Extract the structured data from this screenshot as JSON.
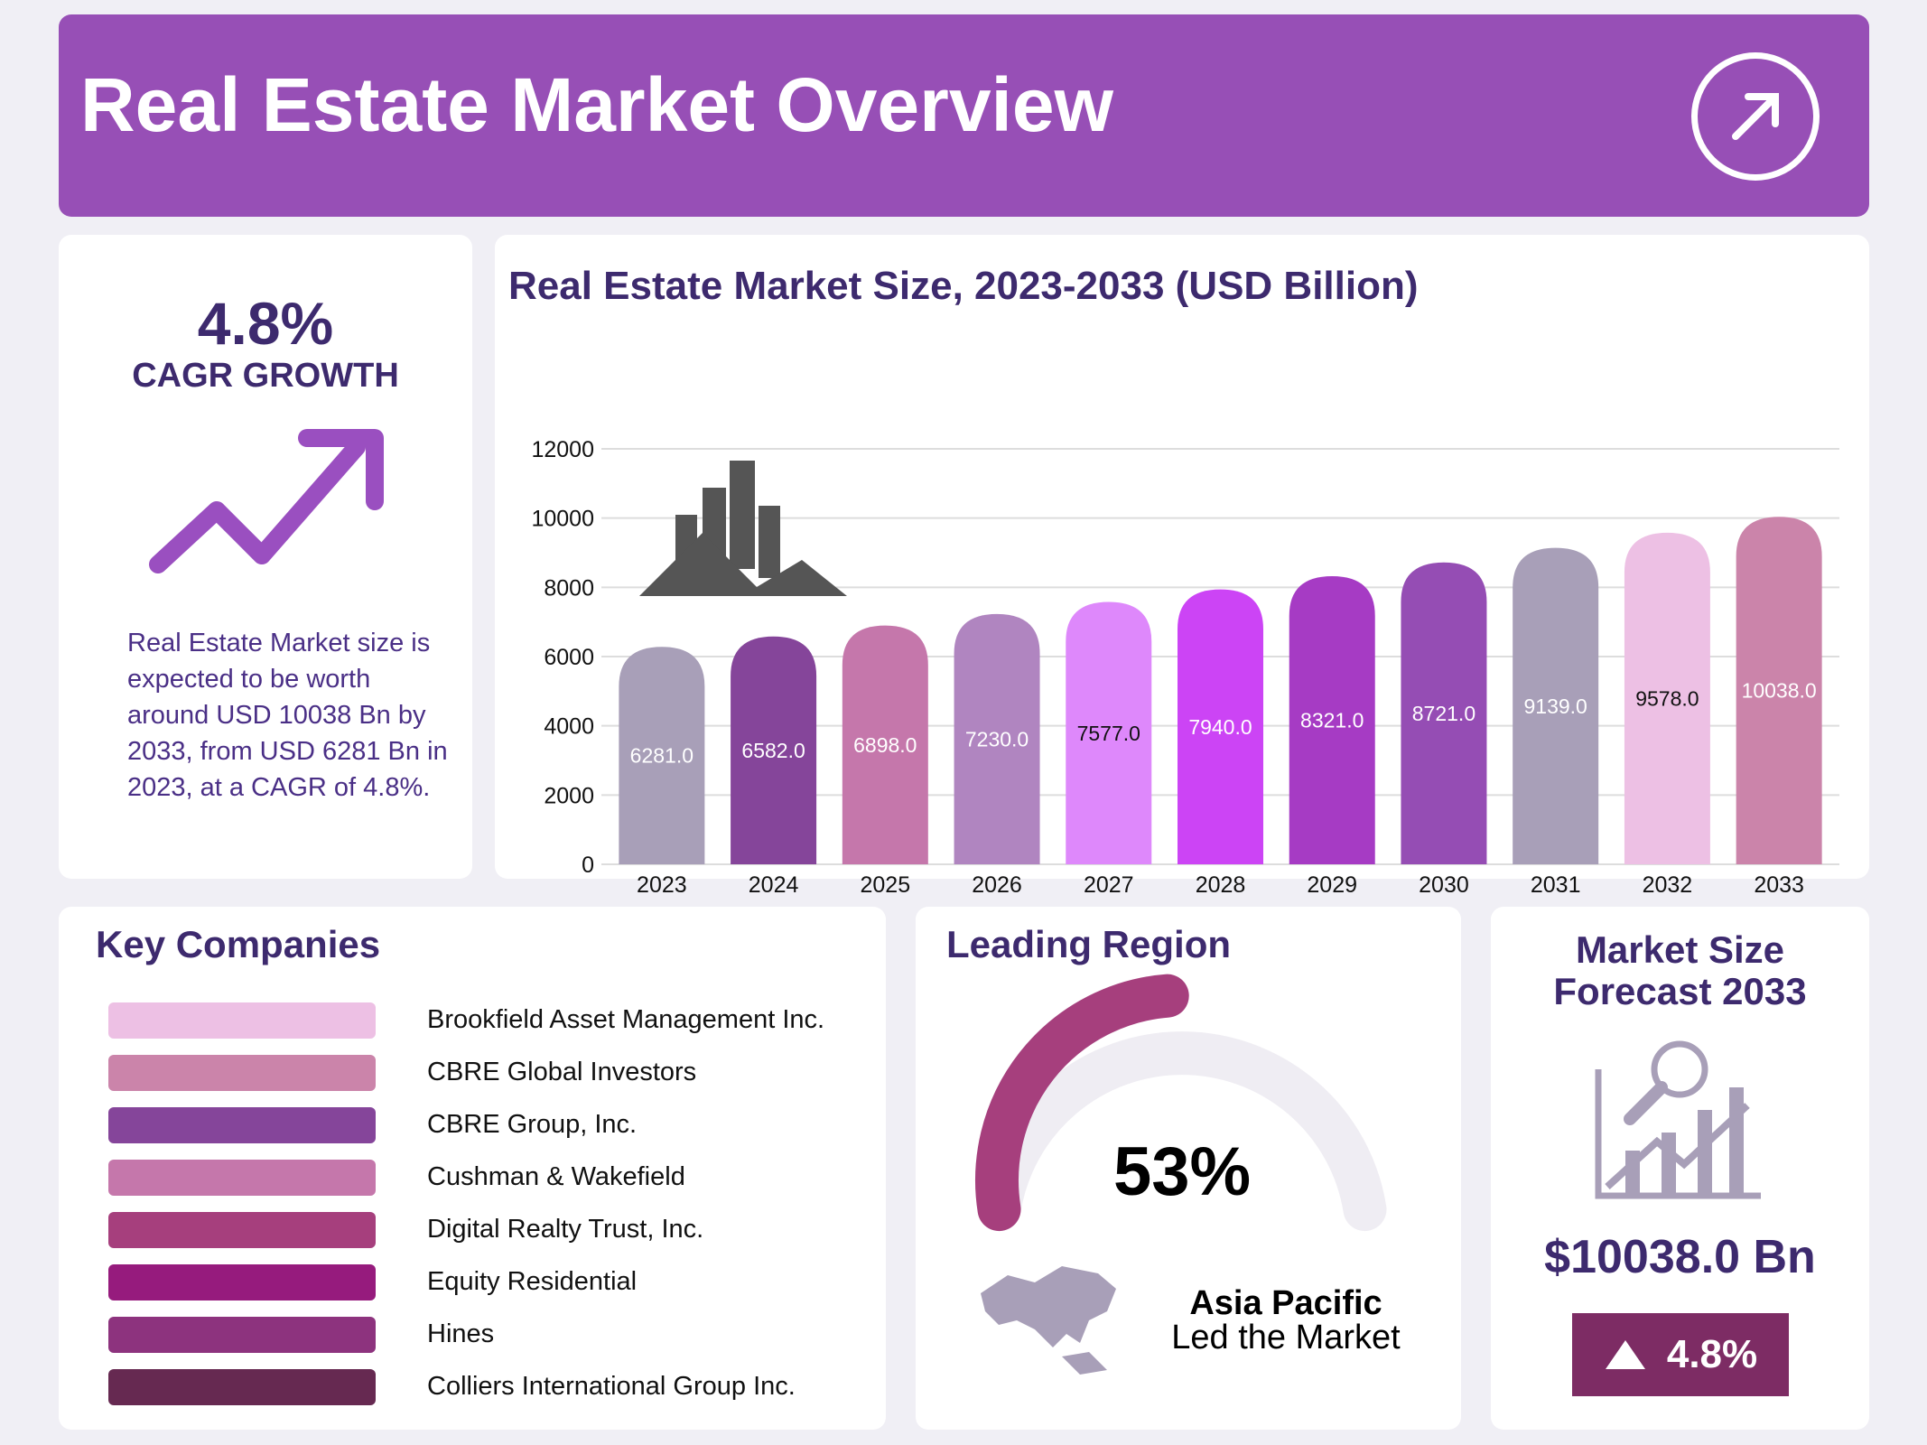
{
  "header": {
    "title": "Real Estate Market Overview",
    "icon": "arrow-up-right-icon"
  },
  "cagr": {
    "value": "4.8%",
    "label": "CAGR GROWTH",
    "icon": "trend-up-arrow-icon",
    "description": "Real Estate Market size is expected to be worth around USD 10038 Bn by 2033, from USD 6281 Bn in 2023, at a CAGR of 4.8%."
  },
  "chart_data": {
    "type": "bar",
    "title": "Real Estate Market Size, 2023-2033 (USD Billion)",
    "categories": [
      "2023",
      "2024",
      "2025",
      "2026",
      "2027",
      "2028",
      "2029",
      "2030",
      "2031",
      "2032",
      "2033"
    ],
    "values": [
      6281.0,
      6582.0,
      6898.0,
      7230.0,
      7577.0,
      7940.0,
      8321.0,
      8721.0,
      9139.0,
      9578.0,
      10038.0
    ],
    "labels": [
      "6281.0",
      "6582.0",
      "6898.0",
      "7230.0",
      "7577.0",
      "7940.0",
      "8321.0",
      "8721.0",
      "9139.0",
      "9578.0",
      "10038.0"
    ],
    "colors": [
      "#a89fb8",
      "#85459a",
      "#c577ab",
      "#b085c0",
      "#de88fb",
      "#cc44f5",
      "#a63bc4",
      "#954db4",
      "#a89fb8",
      "#edc0e4",
      "#cb84aa"
    ],
    "label_colors": [
      "#fff",
      "#fff",
      "#fff",
      "#fff",
      "#111",
      "#fff",
      "#fff",
      "#fff",
      "#fff",
      "#111",
      "#fff"
    ],
    "yticks": [
      "0",
      "2000",
      "4000",
      "6000",
      "8000",
      "10000",
      "12000"
    ],
    "ylim": [
      0,
      12000
    ],
    "grid": true
  },
  "companies": {
    "title": "Key Companies",
    "items": [
      {
        "name": "Brookfield Asset Management Inc.",
        "color": "#edc0e4"
      },
      {
        "name": "CBRE Global Investors",
        "color": "#cb84aa"
      },
      {
        "name": "CBRE Group, Inc.",
        "color": "#85459a"
      },
      {
        "name": "Cushman & Wakefield",
        "color": "#c577ab"
      },
      {
        "name": "Digital Realty Trust, Inc.",
        "color": "#a63f7d"
      },
      {
        "name": "Equity Residential",
        "color": "#961b7d"
      },
      {
        "name": "Hines",
        "color": "#8d337e"
      },
      {
        "name": "Colliers International Group Inc.",
        "color": "#662951"
      }
    ]
  },
  "region": {
    "title": "Leading Region",
    "percent": "53%",
    "share": 53,
    "name": "Asia Pacific",
    "subtitle": "Led the Market",
    "color": "#a63f7d",
    "track_color": "#efedf3",
    "icon": "asia-map-icon"
  },
  "forecast": {
    "title_line1": "Market Size",
    "title_line2": "Forecast 2033",
    "value": "$10038.0 Bn",
    "growth": "4.8%",
    "icon": "growth-chart-icon",
    "badge_color": "#7d2c64"
  }
}
